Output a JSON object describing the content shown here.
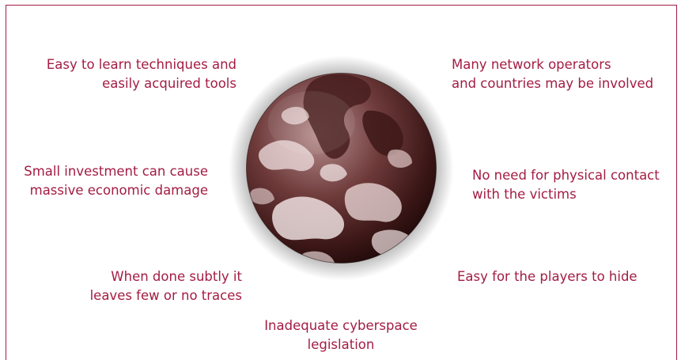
{
  "labels": {
    "top_left": [
      "Easy to learn techniques  and",
      "easily acquired tools"
    ],
    "top_right": [
      "Many network operators",
      "and countries may be involved"
    ],
    "mid_left": [
      "Small investment can cause",
      "massive economic damage"
    ],
    "mid_right": [
      "No need for physical contact",
      "with the victims"
    ],
    "low_left": [
      "When done subtly it",
      "leaves few or no traces"
    ],
    "low_right": [
      "Easy for the players to hide"
    ],
    "bottom": [
      "Inadequate cyberspace",
      "legislation"
    ]
  },
  "colors": {
    "accent": "#a31c44",
    "globe_dark": "#2a0e0e",
    "globe_light": "#f4e6e6"
  },
  "icons": {
    "center": "earth-globe-icon"
  }
}
